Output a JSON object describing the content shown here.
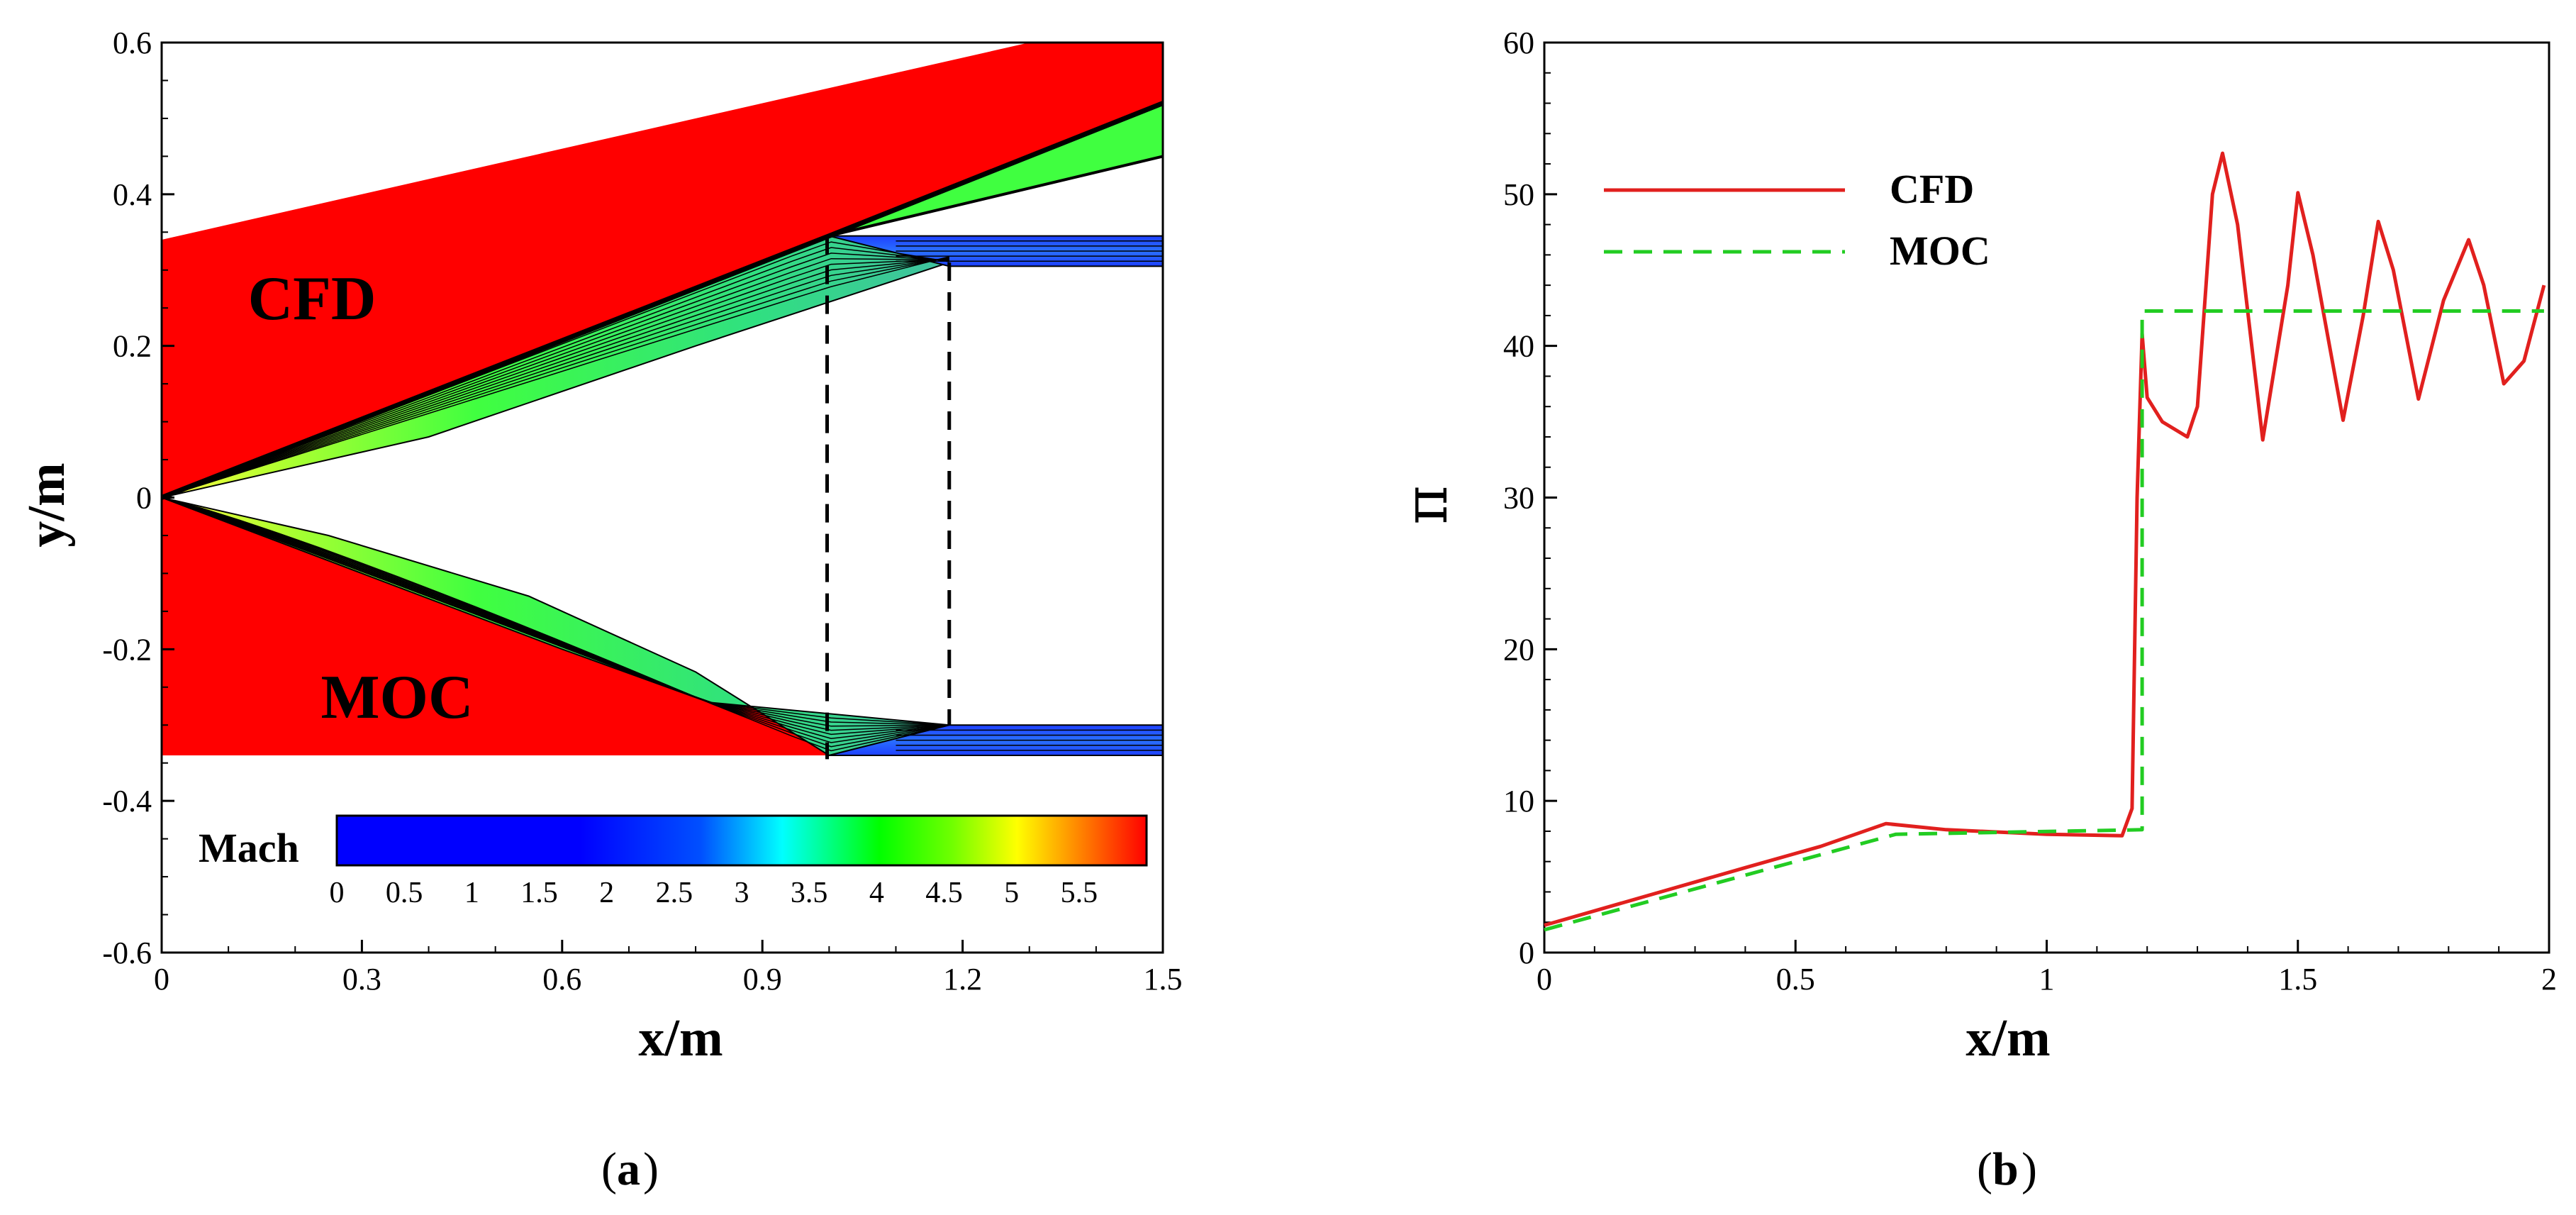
{
  "chart_data": [
    {
      "id": "a",
      "type": "heatmap",
      "caption_open": "(",
      "caption_letter": "a",
      "caption_close": ")",
      "xlabel": "x/m",
      "ylabel": "y/m",
      "xlim": [
        0,
        1.5
      ],
      "ylim": [
        -0.6,
        0.6
      ],
      "xticks": [
        "0",
        "0.3",
        "0.6",
        "0.9",
        "1.2",
        "1.5"
      ],
      "yticks": [
        "-0.6",
        "-0.4",
        "-0.2",
        "0",
        "0.2",
        "0.4",
        "0.6"
      ],
      "regions": [
        "CFD",
        "MOC"
      ],
      "colorbar": {
        "label": "Mach",
        "range": [
          0,
          6
        ],
        "ticks": [
          "0",
          "0.5",
          "1",
          "1.5",
          "2",
          "2.5",
          "3",
          "3.5",
          "4",
          "4.5",
          "5",
          "5.5"
        ],
        "colors": [
          "#0000ff",
          "#0000ff",
          "#0060ff",
          "#00ffff",
          "#00ff00",
          "#70ff00",
          "#ffff00",
          "#ff8000",
          "#ff0000"
        ]
      },
      "geometry": {
        "upper_wall": [
          [
            0,
            0.34
          ],
          [
            1.3,
            0.6
          ],
          [
            1.5,
            0.6
          ]
        ],
        "upper_ramp": [
          [
            0,
            0
          ],
          [
            1.0,
            0.345
          ],
          [
            1.5,
            0.52
          ]
        ],
        "upper_cowl": [
          [
            0,
            0
          ],
          [
            0.4,
            0.08
          ],
          [
            0.8,
            0.2
          ],
          [
            1.18,
            0.31
          ]
        ],
        "upper_outer_edge": [
          [
            1.0,
            0.345
          ],
          [
            1.5,
            0.45
          ]
        ],
        "lower_ramp": [
          [
            0,
            0
          ],
          [
            0.25,
            -0.05
          ],
          [
            0.55,
            -0.13
          ],
          [
            0.8,
            -0.23
          ],
          [
            1.0,
            -0.34
          ]
        ],
        "lower_cowl": [
          [
            0,
            0
          ],
          [
            0.3,
            -0.1
          ],
          [
            0.6,
            -0.2
          ],
          [
            0.82,
            -0.27
          ],
          [
            1.18,
            -0.3
          ]
        ],
        "isolator_upper": [
          [
            1.0,
            0.345
          ],
          [
            1.5,
            0.3
          ]
        ],
        "isolator_lower": [
          [
            1.0,
            -0.345
          ],
          [
            1.5,
            -0.3
          ]
        ],
        "dashed_x": [
          0.997,
          1.18
        ]
      }
    },
    {
      "id": "b",
      "type": "line",
      "caption_open": "(",
      "caption_letter": "b",
      "caption_close": ")",
      "xlabel": "x/m",
      "ylabel": "π",
      "xlim": [
        0,
        2
      ],
      "ylim": [
        0,
        60
      ],
      "xticks": [
        "0",
        "0.5",
        "1",
        "1.5",
        "2"
      ],
      "yticks": [
        "0",
        "10",
        "20",
        "30",
        "40",
        "50",
        "60"
      ],
      "series": [
        {
          "name": "CFD",
          "color": "#e1201e",
          "dash": "solid",
          "points": [
            [
              0,
              1.8
            ],
            [
              0.2,
              3.7
            ],
            [
              0.4,
              5.6
            ],
            [
              0.55,
              7.0
            ],
            [
              0.68,
              8.5
            ],
            [
              0.8,
              8.1
            ],
            [
              1.0,
              7.8
            ],
            [
              1.15,
              7.7
            ],
            [
              1.17,
              9.5
            ],
            [
              1.18,
              30
            ],
            [
              1.19,
              40.8
            ],
            [
              1.2,
              36.6
            ],
            [
              1.23,
              35
            ],
            [
              1.28,
              34
            ],
            [
              1.3,
              36
            ],
            [
              1.33,
              50
            ],
            [
              1.35,
              52.7
            ],
            [
              1.38,
              48
            ],
            [
              1.43,
              33.8
            ],
            [
              1.48,
              44
            ],
            [
              1.5,
              50.1
            ],
            [
              1.53,
              46
            ],
            [
              1.59,
              35.1
            ],
            [
              1.63,
              42
            ],
            [
              1.66,
              48.2
            ],
            [
              1.69,
              45
            ],
            [
              1.74,
              36.5
            ],
            [
              1.79,
              43
            ],
            [
              1.84,
              47
            ],
            [
              1.87,
              44
            ],
            [
              1.91,
              37.5
            ],
            [
              1.95,
              39
            ],
            [
              1.99,
              44
            ]
          ]
        },
        {
          "name": "MOC",
          "color": "#22cc22",
          "dash": "dashed",
          "points": [
            [
              0,
              1.5
            ],
            [
              0.7,
              7.8
            ],
            [
              1.19,
              8.1
            ],
            [
              1.19,
              42.3
            ],
            [
              1.99,
              42.3
            ]
          ]
        }
      ]
    }
  ]
}
